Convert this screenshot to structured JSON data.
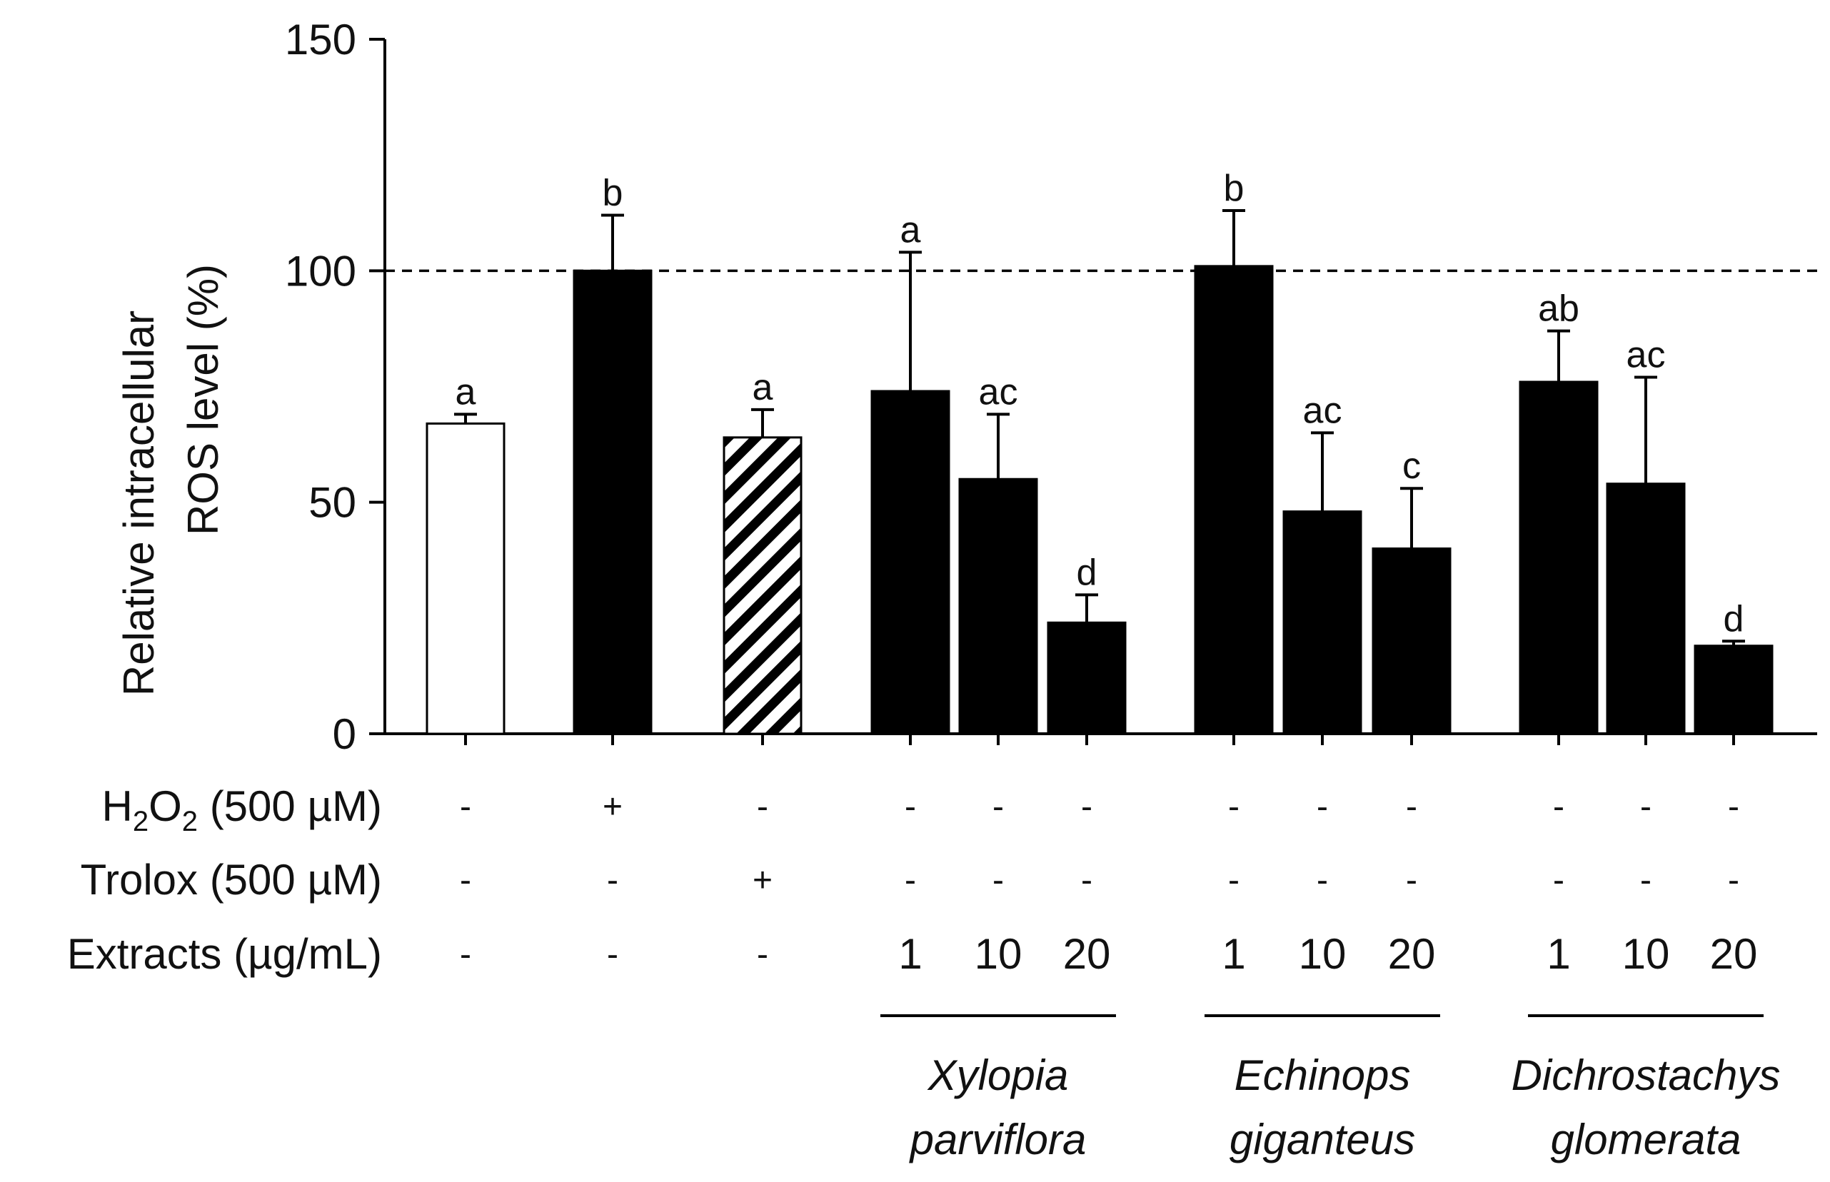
{
  "chart_data": {
    "type": "bar",
    "ylabel": [
      "Relative intracellular",
      "ROS level (%)"
    ],
    "ylim": [
      0,
      150
    ],
    "yticks": [
      0,
      50,
      100,
      150
    ],
    "reference_line": 100,
    "bars": [
      {
        "value": 67,
        "error": 2,
        "sig": "a",
        "fill": "white"
      },
      {
        "value": 100,
        "error": 12,
        "sig": "b",
        "fill": "black"
      },
      {
        "value": 64,
        "error": 6,
        "sig": "a",
        "fill": "hatched"
      },
      {
        "value": 74,
        "error": 30,
        "sig": "a",
        "fill": "black"
      },
      {
        "value": 55,
        "error": 14,
        "sig": "ac",
        "fill": "black"
      },
      {
        "value": 24,
        "error": 6,
        "sig": "d",
        "fill": "black"
      },
      {
        "value": 101,
        "error": 12,
        "sig": "b",
        "fill": "black"
      },
      {
        "value": 48,
        "error": 17,
        "sig": "ac",
        "fill": "black"
      },
      {
        "value": 40,
        "error": 13,
        "sig": "c",
        "fill": "black"
      },
      {
        "value": 76,
        "error": 11,
        "sig": "ab",
        "fill": "black"
      },
      {
        "value": 54,
        "error": 23,
        "sig": "ac",
        "fill": "black"
      },
      {
        "value": 19,
        "error": 1,
        "sig": "d",
        "fill": "black"
      }
    ],
    "treatment_rows": [
      {
        "label_main": "H",
        "sub1": "2",
        "mid": "O",
        "sub2": "2",
        "rest": " (500 µM)",
        "cells": [
          "-",
          "+",
          "-",
          "-",
          "-",
          "-",
          "-",
          "-",
          "-",
          "-",
          "-",
          "-"
        ]
      },
      {
        "label": "Trolox (500 µM)",
        "cells": [
          "-",
          "-",
          "+",
          "-",
          "-",
          "-",
          "-",
          "-",
          "-",
          "-",
          "-",
          "-"
        ]
      },
      {
        "label": "Extracts (µg/mL)",
        "cells": [
          "-",
          "-",
          "-",
          "1",
          "10",
          "20",
          "1",
          "10",
          "20",
          "1",
          "10",
          "20"
        ]
      }
    ],
    "groups": [
      {
        "line1": "Xylopia",
        "line2": "parviflora"
      },
      {
        "line1": "Echinops",
        "line2": "giganteus"
      },
      {
        "line1": "Dichrostachys",
        "line2": "glomerata"
      }
    ]
  }
}
